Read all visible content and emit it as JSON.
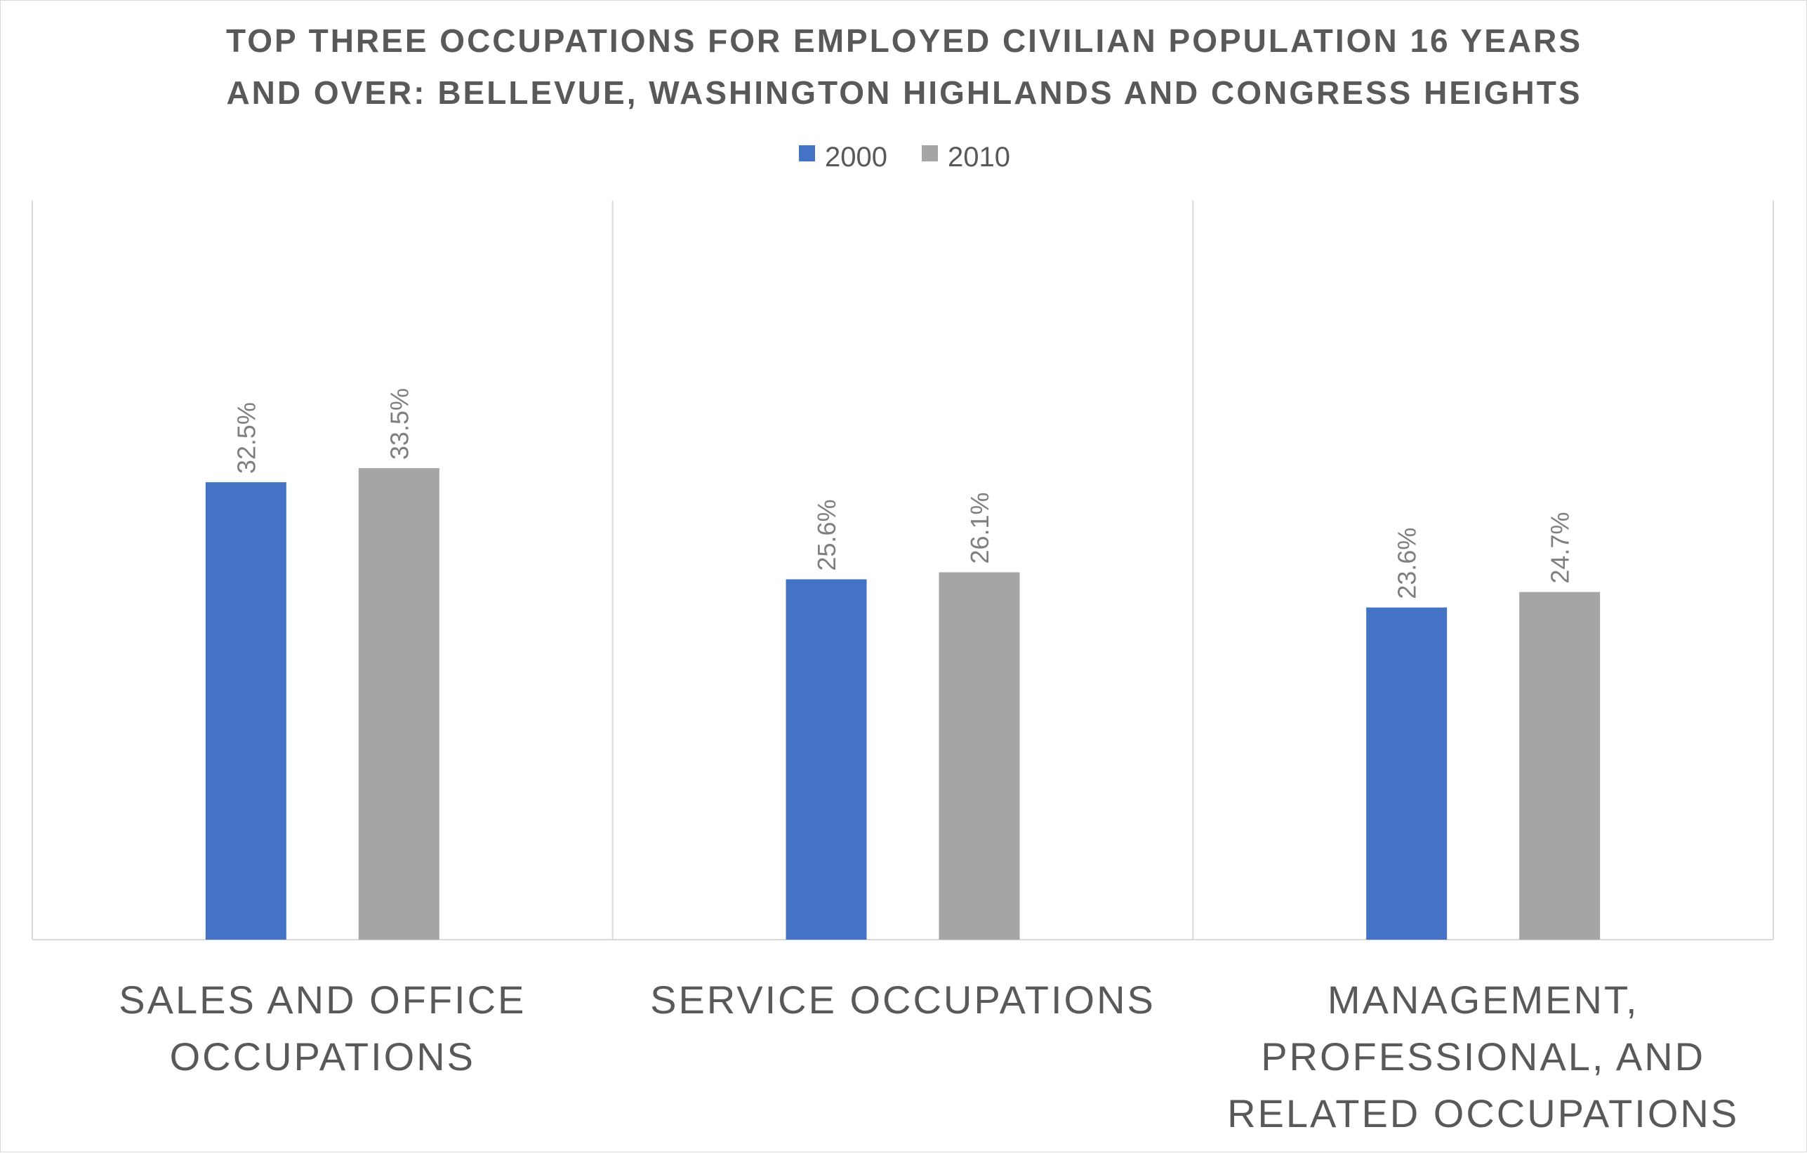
{
  "chart_data": {
    "type": "bar",
    "title_lines": [
      "TOP THREE OCCUPATIONS FOR EMPLOYED CIVILIAN POPULATION 16 YEARS",
      "AND OVER: BELLEVUE, WASHINGTON HIGHLANDS AND CONGRESS HEIGHTS"
    ],
    "categories": [
      [
        "SALES AND OFFICE",
        "OCCUPATIONS"
      ],
      [
        "SERVICE OCCUPATIONS"
      ],
      [
        "MANAGEMENT,",
        "PROFESSIONAL, AND",
        "RELATED OCCUPATIONS"
      ]
    ],
    "series": [
      {
        "name": "2000",
        "color": "#4472C4",
        "values": [
          32.5,
          25.6,
          23.6
        ],
        "labels": [
          "32.5%",
          "25.6%",
          "23.6%"
        ]
      },
      {
        "name": "2010",
        "color": "#A5A5A5",
        "values": [
          33.5,
          26.1,
          24.7
        ],
        "labels": [
          "33.5%",
          "26.1%",
          "24.7%"
        ]
      }
    ],
    "ylim": [
      0,
      52.5
    ],
    "legend_position": "top",
    "grid": false,
    "category_dividers": true,
    "y_axis_visible": false
  }
}
